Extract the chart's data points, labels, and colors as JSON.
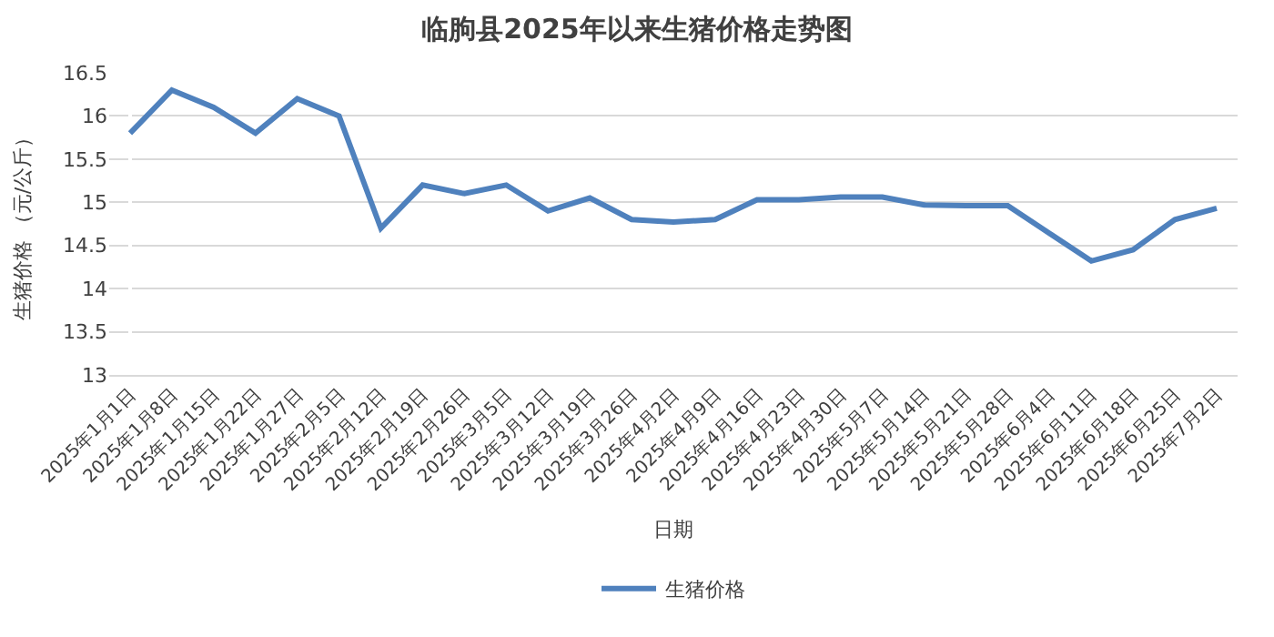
{
  "chart_data": {
    "type": "line",
    "title": "临朐县2025年以来生猪价格走势图",
    "xlabel": "日期",
    "ylabel": "生猪价格 （元/公斤）",
    "categories": [
      "2025年1月1日",
      "2025年1月8日",
      "2025年1月15日",
      "2025年1月22日",
      "2025年1月27日",
      "2025年2月5日",
      "2025年2月12日",
      "2025年2月19日",
      "2025年2月26日",
      "2025年3月5日",
      "2025年3月12日",
      "2025年3月19日",
      "2025年3月26日",
      "2025年4月2日",
      "2025年4月9日",
      "2025年4月16日",
      "2025年4月23日",
      "2025年4月30日",
      "2025年5月7日",
      "2025年5月14日",
      "2025年5月21日",
      "2025年5月28日",
      "2025年6月4日",
      "2025年6月11日",
      "2025年6月18日",
      "2025年6月25日",
      "2025年7月2日"
    ],
    "series": [
      {
        "name": "生猪价格",
        "color": "#4f81bd",
        "values": [
          15.8,
          16.3,
          16.1,
          15.8,
          16.2,
          16.0,
          14.7,
          15.2,
          15.1,
          15.2,
          14.9,
          15.05,
          14.8,
          14.77,
          14.8,
          15.03,
          15.03,
          15.06,
          15.06,
          14.97,
          14.96,
          14.96,
          14.64,
          14.32,
          14.45,
          14.8,
          14.93
        ]
      }
    ],
    "ylim": [
      13,
      16.5
    ],
    "yticks": [
      13,
      13.5,
      14,
      14.5,
      15,
      15.5,
      16,
      16.5
    ],
    "grid": "y",
    "legend": "bottom",
    "marker": "none",
    "line_style": "solid"
  }
}
